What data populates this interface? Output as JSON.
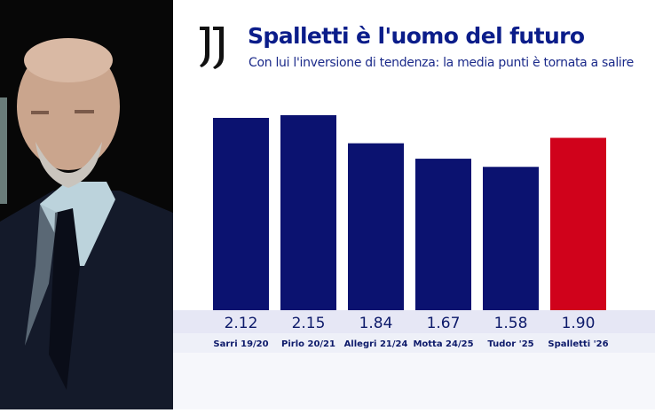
{
  "header": {
    "logo": "Juventus J logo",
    "title": "Spalletti è l'uomo del futuro",
    "subtitle": "Con lui l'inversione di tendenza: la media punti è tornata a salire"
  },
  "photo": {
    "subject": "portrait photo"
  },
  "chart_data": {
    "type": "bar",
    "title": "Spalletti è l'uomo del futuro",
    "subtitle": "Con lui l'inversione di tendenza: la media punti è tornata a salire",
    "categories": [
      "Sarri 19/20",
      "Pirlo 20/21",
      "Allegri 21/24",
      "Motta 24/25",
      "Tudor '25",
      "Spalletti '26"
    ],
    "values": [
      2.12,
      2.15,
      1.84,
      1.67,
      1.58,
      1.9
    ],
    "value_labels": [
      "2.12",
      "2.15",
      "1.84",
      "1.67",
      "1.58",
      "1.90"
    ],
    "colors": [
      "#0b1270",
      "#0b1270",
      "#0b1270",
      "#0b1270",
      "#0b1270",
      "#d0021b"
    ],
    "xlabel": "",
    "ylabel": "",
    "ylim": [
      0,
      2.15
    ],
    "grid": false
  }
}
